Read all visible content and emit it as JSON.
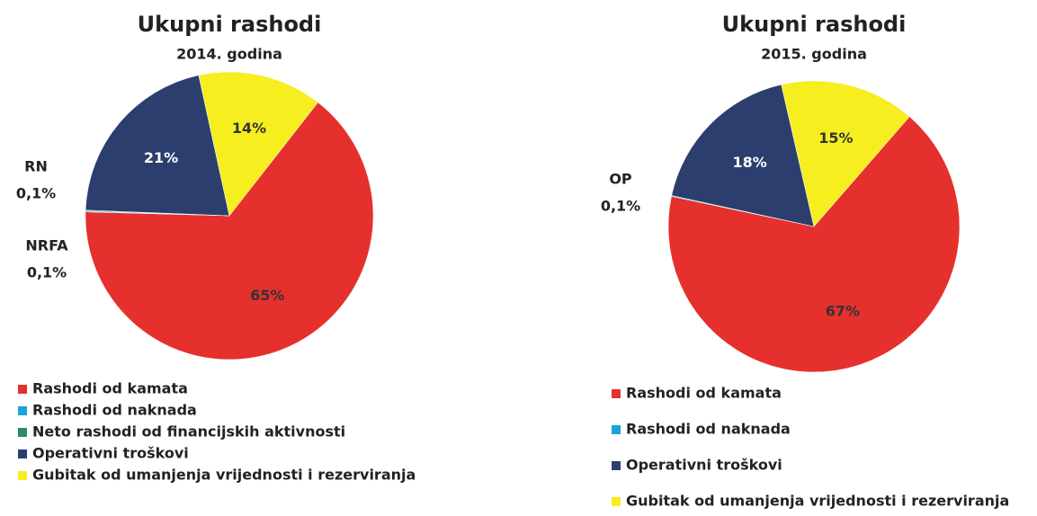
{
  "chart_data": [
    {
      "type": "pie",
      "title": "Ukupni rashodi",
      "subtitle": "2014. godina",
      "categories": [
        "Rashodi od kamata",
        "Rashodi od naknada",
        "Neto rashodi od financijskih aktivnosti",
        "Operativni troškovi",
        "Gubitak od umanjenja vrijednosti i rezerviranja"
      ],
      "values": [
        65,
        0.1,
        0.1,
        21,
        14
      ],
      "value_labels": [
        "65%",
        "0,1%",
        "0,1%",
        "21%",
        "14%"
      ],
      "abbreviations": [
        null,
        "RN",
        "NRFA",
        null,
        null
      ],
      "colors": [
        "#e5302d",
        "#1aa3d9",
        "#2a8a6a",
        "#2b3e6d",
        "#f6ee1f"
      ]
    },
    {
      "type": "pie",
      "title": "Ukupni rashodi",
      "subtitle": "2015. godina",
      "categories": [
        "Rashodi od kamata",
        "Rashodi od naknada",
        "Operativni troškovi",
        "Gubitak od umanjenja vrijednosti i rezerviranja"
      ],
      "values": [
        67,
        0.1,
        18,
        15
      ],
      "value_labels": [
        "67%",
        "0,1%",
        "18%",
        "15%"
      ],
      "abbreviations": [
        null,
        "OP",
        null,
        null
      ],
      "colors": [
        "#e5302d",
        "#1aa3d9",
        "#2b3e6d",
        "#f6ee1f"
      ]
    }
  ]
}
